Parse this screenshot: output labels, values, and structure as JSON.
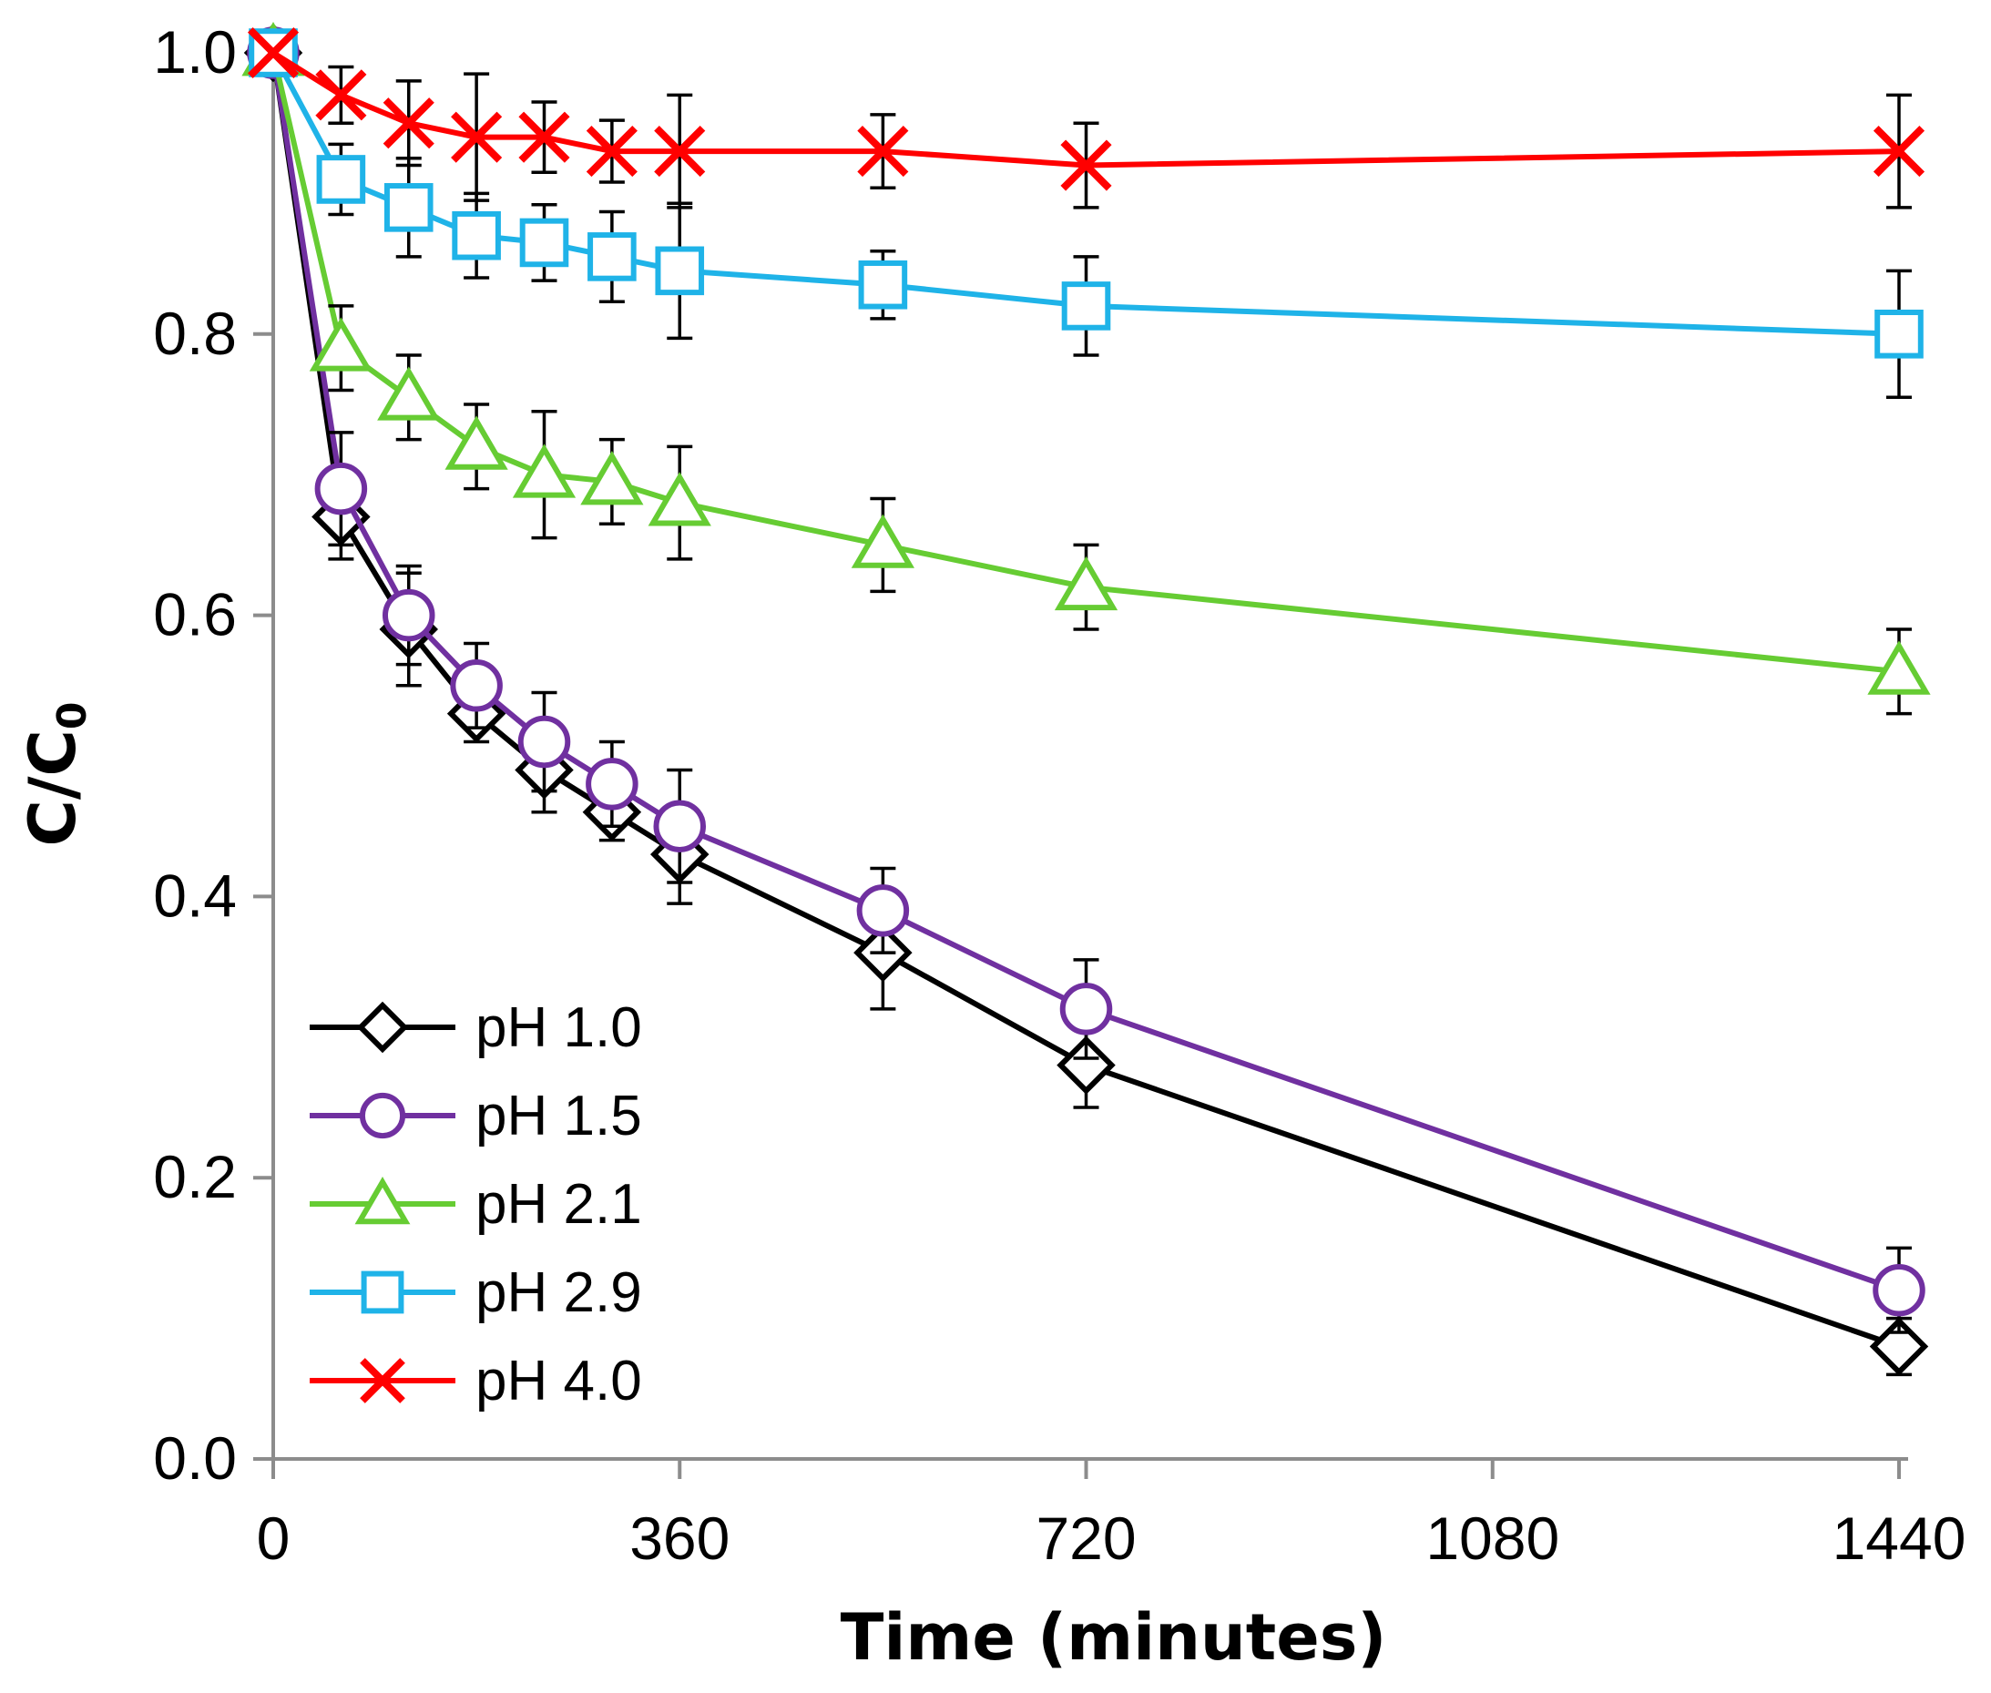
{
  "chart_data": {
    "type": "line",
    "title": "",
    "xlabel": "Time (minutes)",
    "ylabel_main": "C/C",
    "ylabel_sub": "0",
    "xlim": [
      0,
      1440
    ],
    "ylim": [
      0,
      1.0
    ],
    "xticks": [
      0,
      360,
      720,
      1080,
      1440
    ],
    "xtick_labels": [
      "0",
      "360",
      "720",
      "1080",
      "1440"
    ],
    "yticks": [
      0,
      0.2,
      0.4,
      0.6,
      0.8,
      1.0
    ],
    "ytick_labels": [
      "0.0",
      "0.2",
      "0.4",
      "0.6",
      "0.8",
      "1.0"
    ],
    "grid": false,
    "legend_position": "bottom-left",
    "series": [
      {
        "name": "pH 1.0",
        "color": "#000000",
        "marker": "diamond",
        "x": [
          0,
          60,
          120,
          180,
          240,
          300,
          360,
          540,
          720,
          1440
        ],
        "y": [
          1.0,
          0.67,
          0.59,
          0.53,
          0.49,
          0.46,
          0.43,
          0.36,
          0.28,
          0.08
        ],
        "err": [
          0.0,
          0.03,
          0.04,
          0.02,
          0.03,
          0.02,
          0.035,
          0.04,
          0.03,
          0.02
        ]
      },
      {
        "name": "pH 1.5",
        "color": "#7030A0",
        "marker": "circle",
        "x": [
          0,
          60,
          120,
          180,
          240,
          300,
          360,
          540,
          720,
          1440
        ],
        "y": [
          1.0,
          0.69,
          0.6,
          0.55,
          0.51,
          0.48,
          0.45,
          0.39,
          0.32,
          0.12
        ],
        "err": [
          0.0,
          0.04,
          0.035,
          0.03,
          0.035,
          0.03,
          0.04,
          0.03,
          0.035,
          0.03
        ]
      },
      {
        "name": "pH 2.1",
        "color": "#66CC33",
        "marker": "triangle",
        "x": [
          0,
          60,
          120,
          180,
          240,
          300,
          360,
          540,
          720,
          1440
        ],
        "y": [
          1.0,
          0.79,
          0.755,
          0.72,
          0.7,
          0.695,
          0.68,
          0.65,
          0.62,
          0.56
        ],
        "err": [
          0.0,
          0.03,
          0.03,
          0.03,
          0.045,
          0.03,
          0.04,
          0.033,
          0.03,
          0.03
        ]
      },
      {
        "name": "pH 2.9",
        "color": "#1FB3E8",
        "marker": "square",
        "x": [
          0,
          60,
          120,
          180,
          240,
          300,
          360,
          540,
          720,
          1440
        ],
        "y": [
          1.0,
          0.91,
          0.89,
          0.87,
          0.865,
          0.855,
          0.845,
          0.835,
          0.82,
          0.8
        ],
        "err": [
          0.0,
          0.025,
          0.035,
          0.03,
          0.027,
          0.032,
          0.048,
          0.024,
          0.035,
          0.045
        ]
      },
      {
        "name": "pH 4.0",
        "color": "#FF0000",
        "marker": "x",
        "x": [
          0,
          60,
          120,
          180,
          240,
          300,
          360,
          540,
          720,
          1440
        ],
        "y": [
          1.0,
          0.97,
          0.95,
          0.94,
          0.94,
          0.93,
          0.93,
          0.93,
          0.92,
          0.93
        ],
        "err": [
          0.0,
          0.02,
          0.03,
          0.045,
          0.025,
          0.022,
          0.04,
          0.026,
          0.03,
          0.04
        ]
      }
    ]
  }
}
